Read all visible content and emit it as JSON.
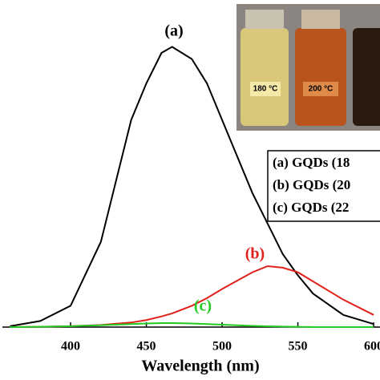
{
  "chart_data": {
    "type": "line",
    "x_label": "Wavelength (nm)",
    "x": [
      360,
      380,
      400,
      420,
      440,
      450,
      460,
      467,
      480,
      490,
      500,
      520,
      530,
      540,
      550,
      560,
      580,
      600
    ],
    "series": [
      {
        "name": "(a) GQDs (18",
        "color": "#000000",
        "values": [
          0.3,
          2,
          7,
          28,
          68,
          80,
          90,
          92,
          88,
          80,
          68,
          44,
          34,
          24,
          17,
          11,
          4,
          1
        ]
      },
      {
        "name": "(b) GQDs (20",
        "color": "#e0201b",
        "values": [
          0,
          0.1,
          0.3,
          0.7,
          1.5,
          2.3,
          3.5,
          4.5,
          7,
          9.5,
          12.5,
          18,
          20,
          19.5,
          18,
          15,
          9,
          4
        ]
      },
      {
        "name": "(c) GQDs (22",
        "color": "#22cc22",
        "values": [
          0,
          0.1,
          0.3,
          0.6,
          1,
          1.2,
          1.3,
          1.3,
          1.2,
          1,
          0.8,
          0.4,
          0.25,
          0.15,
          0.1,
          0,
          0,
          0
        ]
      }
    ],
    "annotations": [
      "(a)",
      "(b)",
      "(c)"
    ],
    "inset_labels": [
      "180 °C",
      "200 °C"
    ],
    "xlim": [
      355,
      604
    ],
    "xticks": [
      400,
      450,
      500,
      550,
      600
    ],
    "ylim": [
      0,
      100
    ]
  }
}
